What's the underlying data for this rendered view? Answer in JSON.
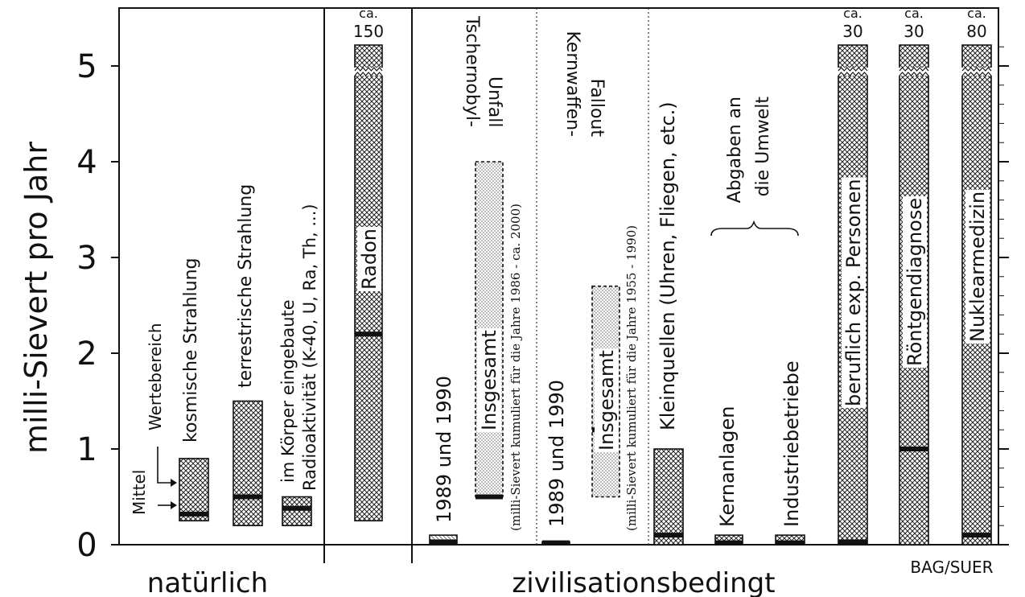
{
  "chart_data": {
    "type": "bar",
    "ylabel": "milli-Sievert pro Jahr",
    "ylim": [
      0,
      5.4
    ],
    "y_ticks": [
      "0",
      "1",
      "2",
      "3",
      "4",
      "5"
    ],
    "groups": [
      "natürlich",
      "zivilisationsbedingt"
    ],
    "source": "BAG/SUER",
    "legend_labels": {
      "range": "Wertebereich",
      "mean": "Mittel"
    },
    "bars": [
      {
        "id": "kosmisch",
        "label": "kosmische Strahlung",
        "min": 0.25,
        "max": 0.9,
        "mean": 0.32,
        "pattern": "hatch"
      },
      {
        "id": "terrestrisch",
        "label": "terrestrische Strahlung",
        "min": 0.2,
        "max": 1.5,
        "mean": 0.5,
        "pattern": "hatch"
      },
      {
        "id": "koerper",
        "label": "im Körper eingebaute",
        "label2": "Radioaktivität (K-40, U, Ra, Th, ...)",
        "min": 0.2,
        "max": 0.5,
        "mean": 0.38,
        "pattern": "hatch"
      },
      {
        "id": "radon",
        "label": "Radon",
        "min": 0.25,
        "max": 150,
        "mean": 2.2,
        "pattern": "hatch",
        "top_label": [
          "ca.",
          "150"
        ]
      },
      {
        "id": "tscherno1989",
        "label": "1989 und 1990",
        "min": 0,
        "max": 0.1,
        "mean": 0.03,
        "pattern": "light"
      },
      {
        "id": "tscherno_total",
        "label": "Insgesamt",
        "min": 0.5,
        "max": 4.0,
        "mean": 0.5,
        "pattern": "dotted",
        "note": "(milli-Sievert kumuliert für die Jahre 1986 - ca. 2000)"
      },
      {
        "id": "fallout1989",
        "label": "1989 und 1990",
        "min": 0,
        "max": 0.03,
        "mean": 0.02,
        "pattern": "hatch"
      },
      {
        "id": "fallout_total",
        "label": "Insgesamt",
        "min": 0.5,
        "max": 2.7,
        "mean": 1.2,
        "pattern": "dotted",
        "note": "(milli-Sievert kumuliert für die Jahre 1955 - 1990)"
      },
      {
        "id": "kleinquellen",
        "label": "Kleinquellen (Uhren, Fliegen, etc.)",
        "min": 0,
        "max": 1.0,
        "mean": 0.1,
        "pattern": "hatch"
      },
      {
        "id": "kernanlagen",
        "label": "Kernanlagen",
        "min": 0,
        "max": 0.1,
        "mean": 0.02,
        "pattern": "hatch"
      },
      {
        "id": "industrie",
        "label": "Industriebetriebe",
        "min": 0,
        "max": 0.1,
        "mean": 0.02,
        "pattern": "hatch"
      },
      {
        "id": "beruflich",
        "label": "beruflich exp. Personen",
        "min": 0,
        "max": 30,
        "mean": 0.03,
        "pattern": "hatch",
        "top_label": [
          "ca.",
          "30"
        ]
      },
      {
        "id": "roentgen",
        "label": "Röntgendiagnose",
        "min": 0,
        "max": 30,
        "mean": 1.0,
        "pattern": "hatch",
        "top_label": [
          "ca.",
          "30"
        ]
      },
      {
        "id": "nuklear",
        "label": "Nuklearmedizin",
        "min": 0,
        "max": 80,
        "mean": 0.1,
        "pattern": "hatch",
        "top_label": [
          "ca.",
          "80"
        ]
      }
    ],
    "annotations": {
      "tschernobyl": [
        "Tschernobyl-",
        "Unfall"
      ],
      "fallout": [
        "Kernwaffen-",
        "Fallout"
      ],
      "abgaben": [
        "Abgaben an",
        "die Umwelt"
      ]
    }
  }
}
